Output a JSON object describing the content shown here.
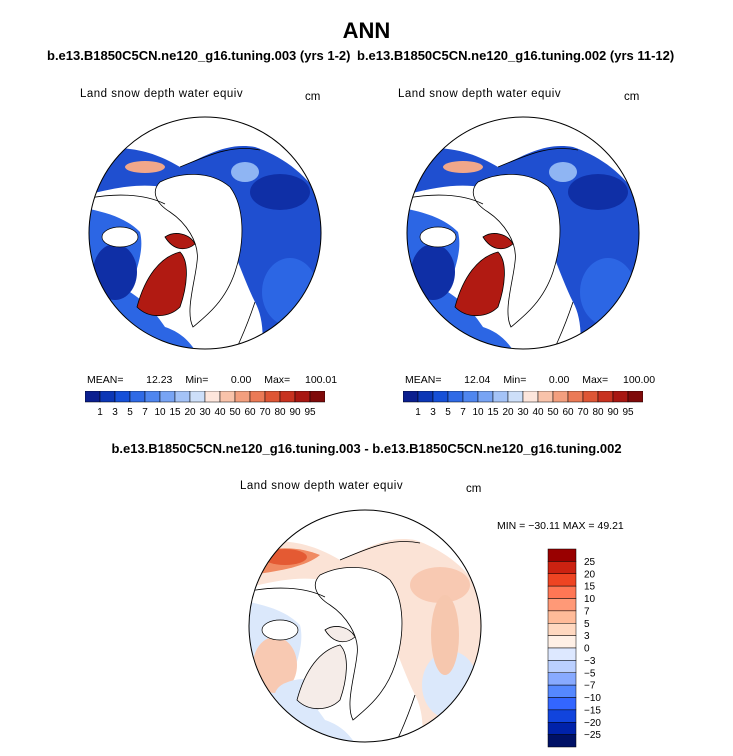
{
  "header": {
    "title": "ANN",
    "left_case": "b.e13.B1850C5CN.ne120_g16.tuning.003 (yrs 1-2)",
    "right_case": "b.e13.B1850C5CN.ne120_g16.tuning.002 (yrs 11-12)",
    "diff_title": "b.e13.B1850C5CN.ne120_g16.tuning.003 - b.e13.B1850C5CN.ne120_g16.tuning.002"
  },
  "colors": {
    "abs_scale": [
      "#0b1f8f",
      "#0c37b6",
      "#1650d8",
      "#2f6ae6",
      "#4f86ef",
      "#78a4f4",
      "#a4c3f7",
      "#cddff9",
      "#fde6dc",
      "#f9c3aa",
      "#f39f7e",
      "#eb7a56",
      "#de5635",
      "#c83220",
      "#a81712",
      "#7f0a0a"
    ],
    "diff_scale": [
      "#001166",
      "#0022aa",
      "#1144dd",
      "#3366ff",
      "#5588ff",
      "#88aaff",
      "#bbd0ff",
      "#dde8ff",
      "#fff0e6",
      "#ffd8c0",
      "#ffbb99",
      "#ff9977",
      "#ff7755",
      "#ee4422",
      "#cc2211",
      "#990000"
    ]
  },
  "chart_data": [
    {
      "type": "heatmap",
      "title": "Land snow depth water equiv",
      "units": "cm",
      "stats": {
        "mean": 12.23,
        "min": 0.0,
        "max": 100.01
      },
      "stats_text": {
        "mean_label": "MEAN=",
        "mean": "12.23",
        "min_label": "Min=",
        "min": "0.00",
        "max_label": "Max=",
        "max": "100.01"
      },
      "colorbar_levels": [
        "1",
        "3",
        "5",
        "7",
        "10",
        "15",
        "20",
        "30",
        "40",
        "50",
        "60",
        "70",
        "80",
        "90",
        "95"
      ]
    },
    {
      "type": "heatmap",
      "title": "Land snow depth water equiv",
      "units": "cm",
      "stats": {
        "mean": 12.04,
        "min": 0.0,
        "max": 100.0
      },
      "stats_text": {
        "mean_label": "MEAN=",
        "mean": "12.04",
        "min_label": "Min=",
        "min": "0.00",
        "max_label": "Max=",
        "max": "100.00"
      },
      "colorbar_levels": [
        "1",
        "3",
        "5",
        "7",
        "10",
        "15",
        "20",
        "30",
        "40",
        "50",
        "60",
        "70",
        "80",
        "90",
        "95"
      ]
    },
    {
      "type": "heatmap",
      "title": "Land snow depth water equiv",
      "units": "cm",
      "stats": {
        "min": -30.11,
        "max": 49.21
      },
      "stats_text": "MIN = −30.11   MAX =   49.21",
      "colorbar_levels": [
        "25",
        "20",
        "15",
        "10",
        "7",
        "5",
        "3",
        "0",
        "−3",
        "−5",
        "−7",
        "−10",
        "−15",
        "−20",
        "−25"
      ]
    }
  ]
}
